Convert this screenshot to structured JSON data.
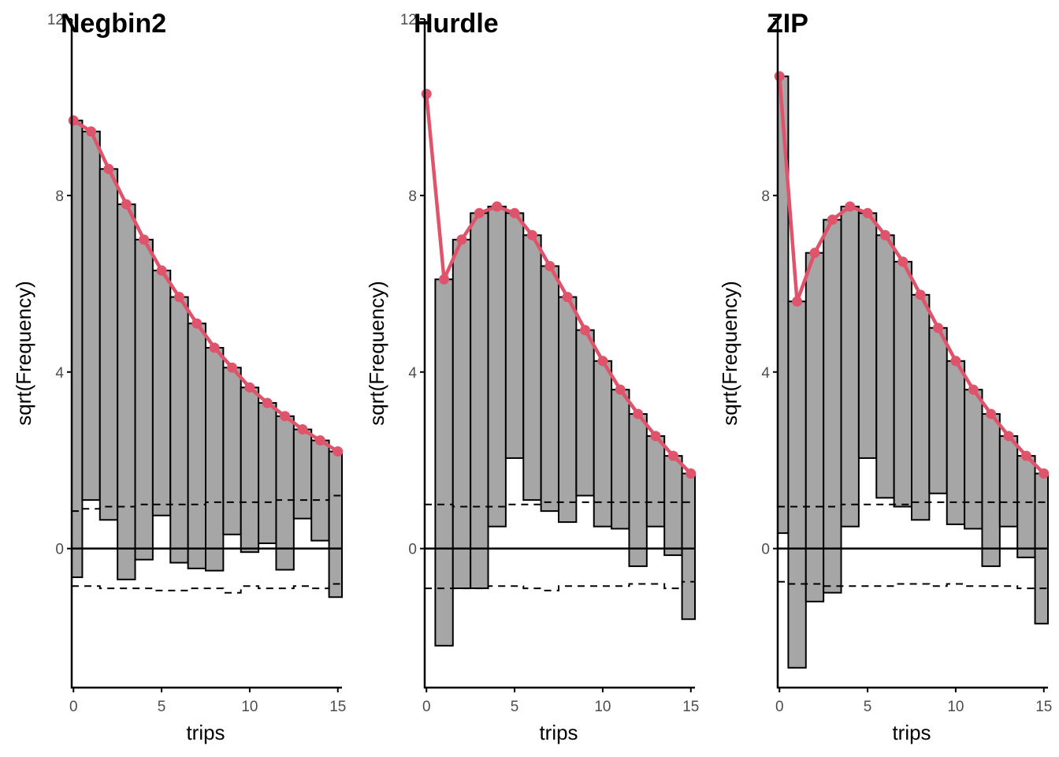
{
  "colors": {
    "bar_fill": "#a6a6a6",
    "bar_stroke": "#000000",
    "fit_line": "#df536b",
    "axis": "#000000"
  },
  "chart_data": [
    {
      "type": "bar",
      "title": "Negbin2",
      "xlabel": "trips",
      "ylabel": "sqrt(Frequency)",
      "x": [
        0,
        1,
        2,
        3,
        4,
        5,
        6,
        7,
        8,
        9,
        10,
        11,
        12,
        13,
        14,
        15
      ],
      "expected": [
        9.7,
        9.45,
        8.6,
        7.8,
        7.0,
        6.3,
        5.7,
        5.1,
        4.55,
        4.1,
        3.65,
        3.3,
        3.0,
        2.7,
        2.45,
        2.2
      ],
      "hanging_bottom": [
        -0.65,
        1.1,
        0.65,
        -0.7,
        -0.25,
        0.75,
        -0.32,
        -0.45,
        -0.5,
        0.32,
        -0.08,
        0.12,
        -0.48,
        0.68,
        0.18,
        -1.1
      ],
      "ref_upper": [
        0.85,
        0.9,
        0.95,
        0.95,
        1.0,
        1.0,
        1.0,
        1.0,
        1.05,
        1.05,
        1.05,
        1.05,
        1.1,
        1.1,
        1.1,
        1.2
      ],
      "ref_lower": [
        -0.85,
        -0.85,
        -0.9,
        -0.9,
        -0.9,
        -0.95,
        -0.95,
        -0.9,
        -0.9,
        -1.0,
        -0.85,
        -0.9,
        -0.9,
        -0.85,
        -0.9,
        -0.8
      ],
      "ylim": [
        -3.15,
        12
      ],
      "xlim": [
        -0.1,
        15.1
      ],
      "yticks": [
        0,
        4,
        8,
        12
      ],
      "xticks": [
        0,
        5,
        10,
        15
      ],
      "top_tick_label": "12"
    },
    {
      "type": "bar",
      "title": "Hurdle",
      "xlabel": "trips",
      "ylabel": "sqrt(Frequency)",
      "x": [
        0,
        1,
        2,
        3,
        4,
        5,
        6,
        7,
        8,
        9,
        10,
        11,
        12,
        13,
        14,
        15
      ],
      "expected": [
        10.3,
        6.1,
        7.0,
        7.6,
        7.75,
        7.6,
        7.1,
        6.4,
        5.7,
        4.95,
        4.25,
        3.6,
        3.05,
        2.55,
        2.1,
        1.7
      ],
      "hanging_bottom": [
        10.3,
        -2.2,
        -0.9,
        -0.9,
        0.5,
        2.05,
        1.1,
        0.85,
        0.6,
        1.2,
        0.5,
        0.45,
        -0.4,
        0.5,
        -0.15,
        -1.6
      ],
      "ref_upper": [
        1.0,
        1.0,
        0.95,
        0.95,
        0.95,
        1.0,
        1.0,
        1.05,
        1.05,
        1.05,
        1.05,
        1.05,
        1.05,
        1.05,
        1.05,
        1.05
      ],
      "ref_lower": [
        -0.9,
        -0.9,
        -0.9,
        -0.9,
        -0.85,
        -0.85,
        -0.9,
        -0.95,
        -0.85,
        -0.85,
        -0.85,
        -0.85,
        -0.8,
        -0.8,
        -0.9,
        -0.75
      ],
      "ylim": [
        -3.15,
        12
      ],
      "xlim": [
        -0.1,
        15.1
      ],
      "yticks": [
        0,
        4,
        8,
        12
      ],
      "xticks": [
        0,
        5,
        10,
        15
      ],
      "top_tick_label": "12"
    },
    {
      "type": "bar",
      "title": "ZIP",
      "xlabel": "trips",
      "ylabel": "sqrt(Frequency)",
      "x": [
        0,
        1,
        2,
        3,
        4,
        5,
        6,
        7,
        8,
        9,
        10,
        11,
        12,
        13,
        14,
        15
      ],
      "expected": [
        10.7,
        5.6,
        6.7,
        7.45,
        7.75,
        7.6,
        7.1,
        6.5,
        5.75,
        5.0,
        4.25,
        3.6,
        3.05,
        2.55,
        2.1,
        1.7
      ],
      "hanging_bottom": [
        0.35,
        -2.7,
        -1.2,
        -1.0,
        0.5,
        2.05,
        1.15,
        0.95,
        0.65,
        1.25,
        0.55,
        0.45,
        -0.4,
        0.5,
        -0.2,
        -1.7
      ],
      "ref_upper": [
        0.95,
        0.95,
        0.95,
        0.95,
        1.0,
        1.0,
        1.0,
        1.0,
        1.05,
        1.05,
        1.05,
        1.05,
        1.05,
        1.05,
        1.05,
        1.05
      ],
      "ref_lower": [
        -0.75,
        -0.8,
        -0.8,
        -0.85,
        -0.85,
        -0.85,
        -0.85,
        -0.8,
        -0.8,
        -0.85,
        -0.8,
        -0.85,
        -0.85,
        -0.85,
        -0.9,
        -0.9
      ],
      "ylim": [
        -3.15,
        12
      ],
      "xlim": [
        -0.1,
        15.1
      ],
      "yticks": [
        0,
        4,
        8,
        12
      ],
      "xticks": [
        0,
        5,
        10,
        15
      ],
      "top_tick_label": ""
    }
  ]
}
